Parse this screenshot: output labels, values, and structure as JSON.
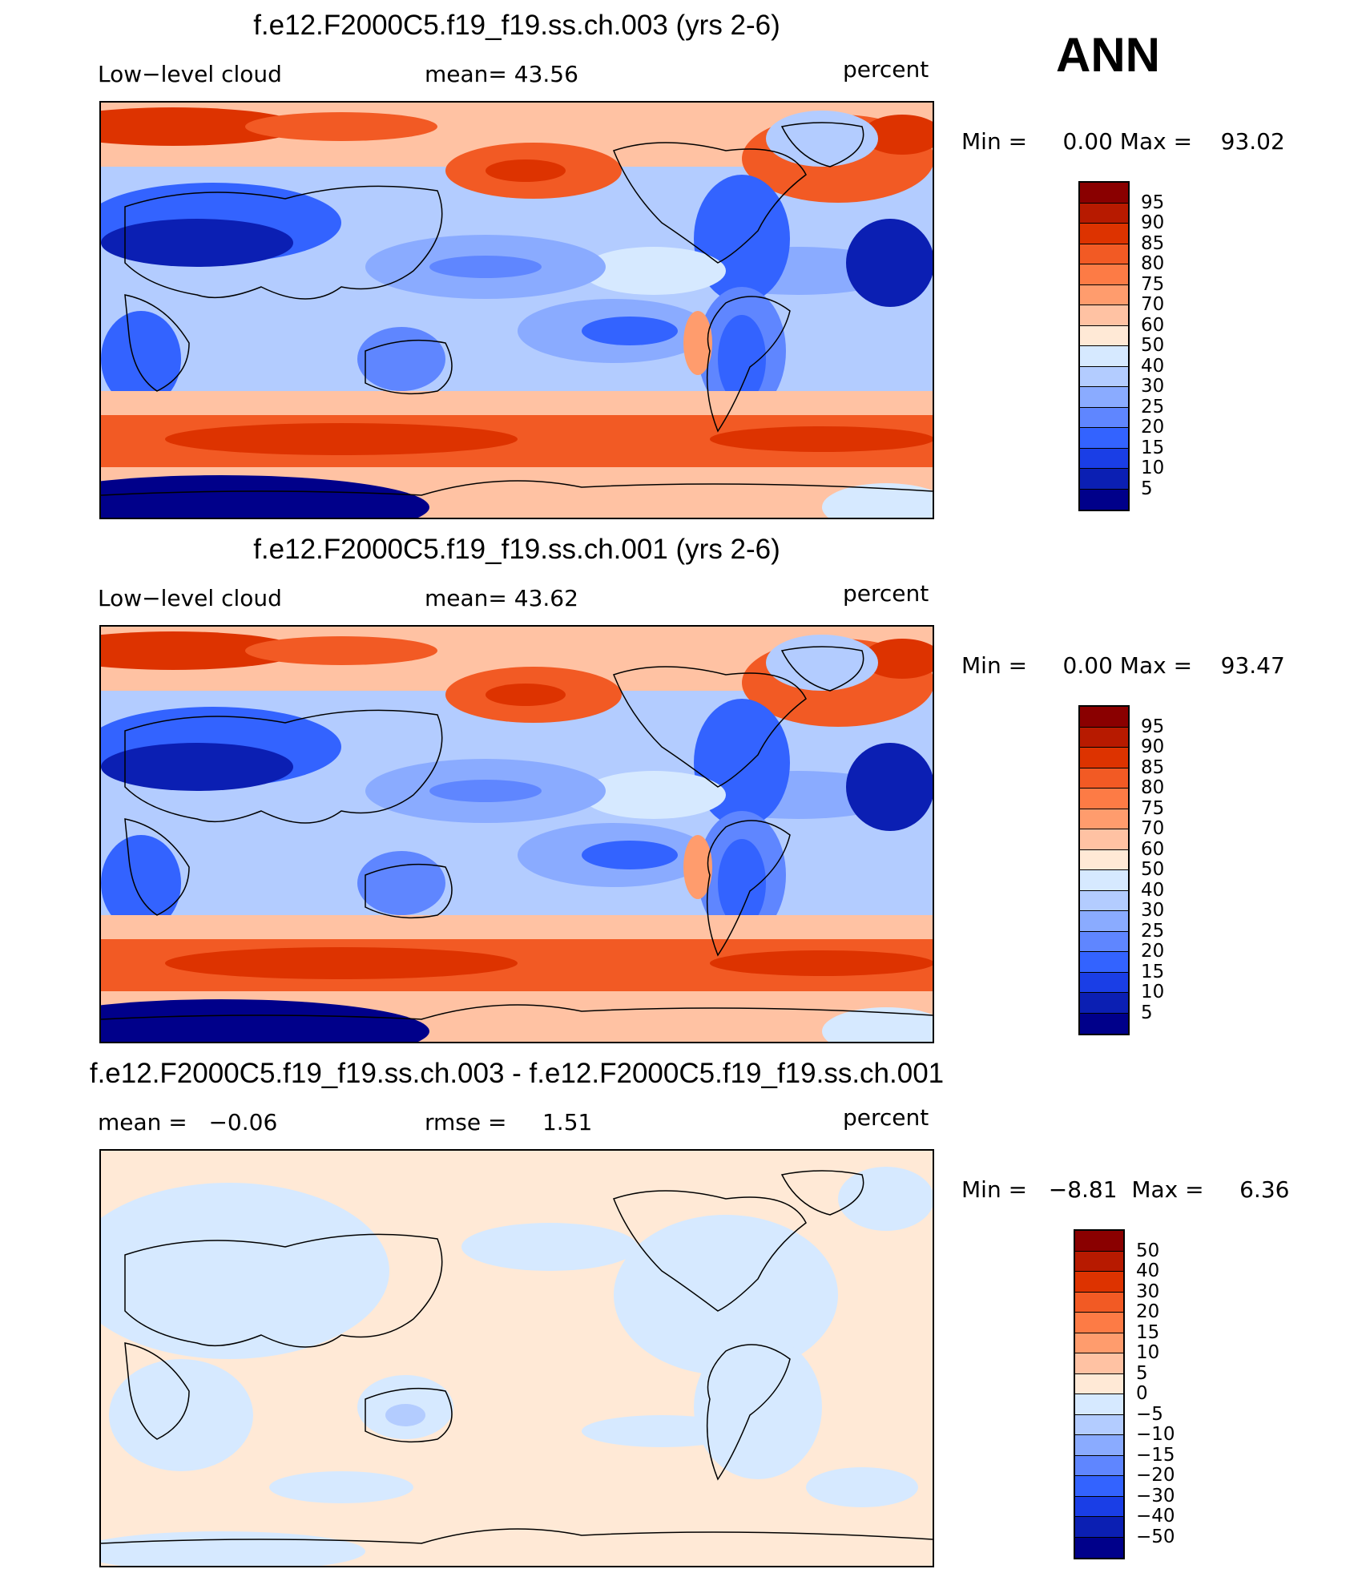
{
  "season": "ANN",
  "panels": [
    {
      "title": "f.e12.F2000C5.f19_f19.ss.ch.003 (yrs 2-6)",
      "left_label": "Low−level cloud",
      "center_label": "mean=   43.56",
      "right_label": "percent",
      "minmax": "Min =     0.00 Max =    93.02",
      "colorbar": "abs"
    },
    {
      "title": "f.e12.F2000C5.f19_f19.ss.ch.001 (yrs 2-6)",
      "left_label": "Low−level cloud",
      "center_label": "mean=   43.62",
      "right_label": "percent",
      "minmax": "Min =     0.00 Max =    93.47",
      "colorbar": "abs"
    },
    {
      "title": "f.e12.F2000C5.f19_f19.ss.ch.003 - f.e12.F2000C5.f19_f19.ss.ch.001",
      "left_label": "mean =   −0.06",
      "center_label": "rmse =     1.51",
      "right_label": "percent",
      "minmax": "Min =   −8.81  Max =     6.36",
      "colorbar": "diff"
    }
  ],
  "colorbars": {
    "abs": {
      "labels": [
        "95",
        "90",
        "85",
        "80",
        "75",
        "70",
        "60",
        "50",
        "40",
        "30",
        "25",
        "20",
        "15",
        "10",
        "5"
      ],
      "colors": [
        "#8a0000",
        "#b71a00",
        "#dd3300",
        "#f25a24",
        "#fd7b45",
        "#ff9c6d",
        "#ffc2a3",
        "#ffe9d6",
        "#d6e9ff",
        "#b3ccff",
        "#8aabff",
        "#5f86ff",
        "#3363ff",
        "#1a3ee6",
        "#0b1fb3",
        "#00008a"
      ]
    },
    "diff": {
      "labels": [
        "50",
        "40",
        "30",
        "20",
        "15",
        "10",
        "5",
        "0",
        "−5",
        "−10",
        "−15",
        "−20",
        "−30",
        "−40",
        "−50"
      ],
      "colors": [
        "#8a0000",
        "#b71a00",
        "#dd3300",
        "#f25a24",
        "#fd7b45",
        "#ff9c6d",
        "#ffc2a3",
        "#ffe9d6",
        "#d6e9ff",
        "#b3ccff",
        "#8aabff",
        "#5f86ff",
        "#3363ff",
        "#1a3ee6",
        "#0b1fb3",
        "#00008a"
      ]
    }
  },
  "chart_data": [
    {
      "type": "heatmap",
      "title": "f.e12.F2000C5.f19_f19.ss.ch.003 (yrs 2-6)",
      "variable": "Low−level cloud",
      "units": "percent",
      "mean": 43.56,
      "min": 0.0,
      "max": 93.02,
      "contour_levels": [
        5,
        10,
        15,
        20,
        25,
        30,
        40,
        50,
        60,
        70,
        75,
        80,
        85,
        90,
        95
      ],
      "projection": "cylindrical equidistant, Pacific-centered"
    },
    {
      "type": "heatmap",
      "title": "f.e12.F2000C5.f19_f19.ss.ch.001 (yrs 2-6)",
      "variable": "Low−level cloud",
      "units": "percent",
      "mean": 43.62,
      "min": 0.0,
      "max": 93.47,
      "contour_levels": [
        5,
        10,
        15,
        20,
        25,
        30,
        40,
        50,
        60,
        70,
        75,
        80,
        85,
        90,
        95
      ],
      "projection": "cylindrical equidistant, Pacific-centered"
    },
    {
      "type": "heatmap",
      "title": "f.e12.F2000C5.f19_f19.ss.ch.003 - f.e12.F2000C5.f19_f19.ss.ch.001",
      "units": "percent",
      "mean": -0.06,
      "rmse": 1.51,
      "min": -8.81,
      "max": 6.36,
      "contour_levels": [
        -50,
        -40,
        -30,
        -20,
        -15,
        -10,
        -5,
        0,
        5,
        10,
        15,
        20,
        30,
        40,
        50
      ],
      "projection": "cylindrical equidistant, Pacific-centered"
    }
  ]
}
